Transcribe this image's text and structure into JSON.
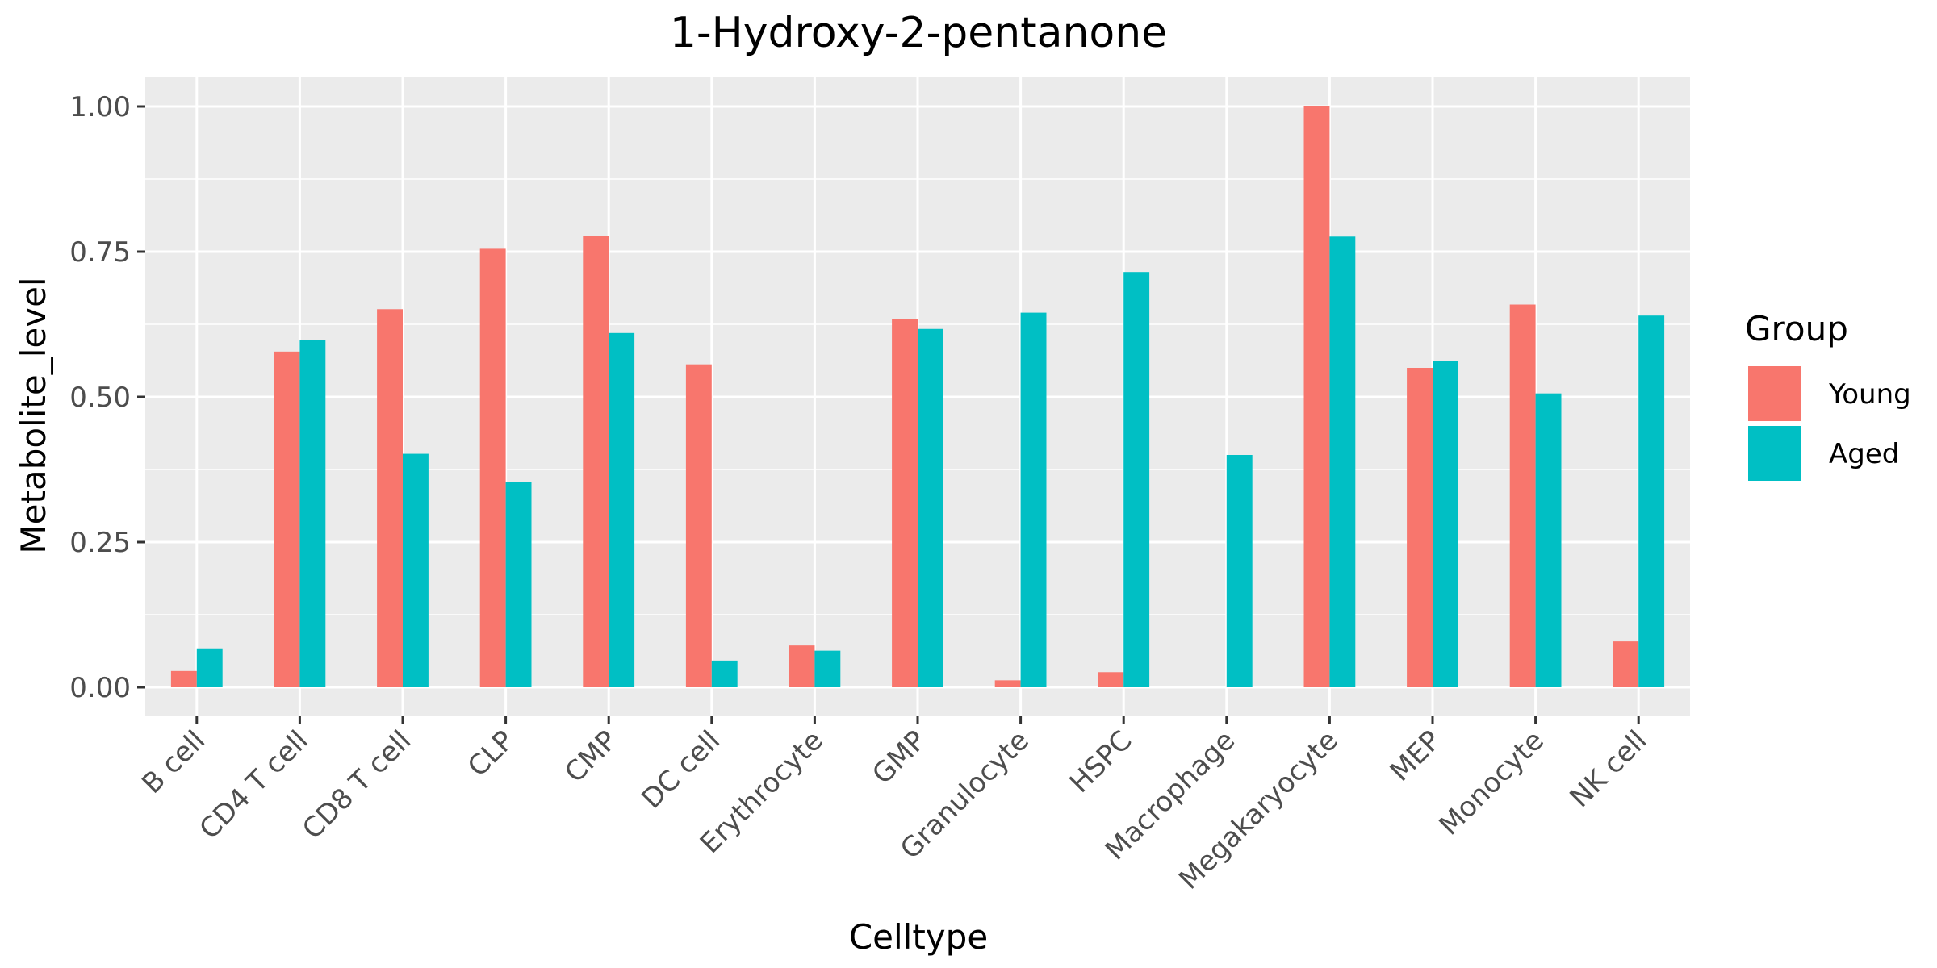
{
  "chart_data": {
    "type": "bar",
    "title": "1-Hydroxy-2-pentanone",
    "xlabel": "Celltype",
    "ylabel": "Metabolite_level",
    "ylim": [
      -0.05,
      1.05
    ],
    "yticks": [
      "0.00",
      "0.25",
      "0.50",
      "0.75",
      "1.00"
    ],
    "categories": [
      "B cell",
      "CD4 T cell",
      "CD8 T cell",
      "CLP",
      "CMP",
      "DC cell",
      "Erythrocyte",
      "GMP",
      "Granulocyte",
      "HSPC",
      "Macrophage",
      "Megakaryocyte",
      "MEP",
      "Monocyte",
      "NK cell"
    ],
    "series": [
      {
        "name": "Young",
        "color": "#F8766D",
        "values": [
          0.028,
          0.578,
          0.651,
          0.755,
          0.777,
          0.556,
          0.072,
          0.634,
          0.012,
          0.026,
          null,
          1.0,
          0.55,
          0.659,
          0.079
        ]
      },
      {
        "name": "Aged",
        "color": "#00BFC4",
        "values": [
          0.067,
          0.598,
          0.402,
          0.354,
          0.61,
          0.046,
          0.063,
          0.617,
          0.645,
          0.715,
          0.4,
          0.776,
          0.562,
          0.506,
          0.64
        ]
      }
    ],
    "legend": {
      "title": "Group",
      "position": "right"
    },
    "grid": true,
    "panel_background": "#EBEBEB",
    "grid_color": "#FFFFFF"
  }
}
